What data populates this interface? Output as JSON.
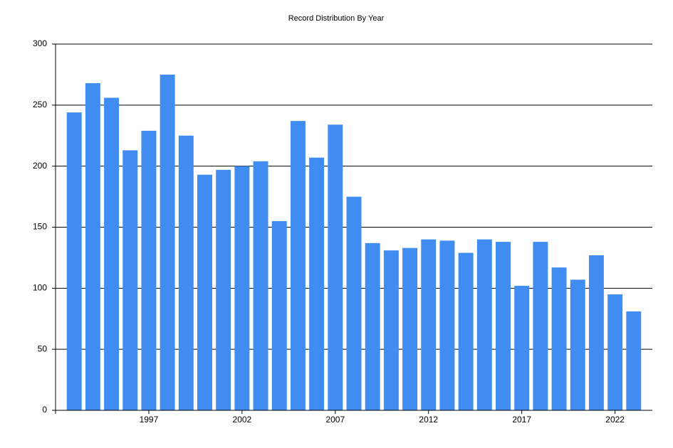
{
  "chart_data": {
    "type": "bar",
    "title": "Record Distribution By Year",
    "x": [
      1993,
      1994,
      1995,
      1996,
      1997,
      1998,
      1999,
      2000,
      2001,
      2002,
      2003,
      2004,
      2005,
      2006,
      2007,
      2008,
      2009,
      2010,
      2011,
      2012,
      2013,
      2014,
      2015,
      2016,
      2017,
      2018,
      2019,
      2020,
      2021,
      2022,
      2023
    ],
    "values": [
      244,
      268,
      256,
      213,
      229,
      275,
      225,
      193,
      197,
      200,
      204,
      155,
      237,
      207,
      234,
      175,
      137,
      131,
      133,
      140,
      139,
      129,
      140,
      138,
      102,
      138,
      117,
      107,
      127,
      95,
      81
    ],
    "color": "#418cf0",
    "xlim": [
      1992,
      2024
    ],
    "xticks": [
      1997,
      2002,
      2007,
      2012,
      2017,
      2022
    ],
    "ylim": [
      0,
      300
    ],
    "yticks": [
      0,
      50,
      100,
      150,
      200,
      250,
      300
    ],
    "grid": true
  }
}
